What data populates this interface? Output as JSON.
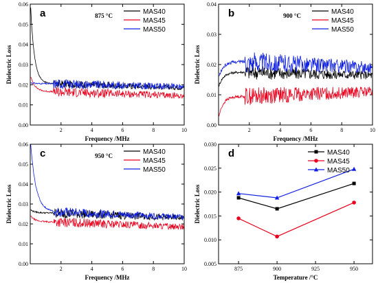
{
  "colors": {
    "MAS40": "#000000",
    "MAS45": "#e8001c",
    "MAS50": "#1020e0"
  },
  "chart_data": [
    {
      "panel": "a",
      "type": "line",
      "annotation": "875 °C",
      "xlabel": "Frequency /MHz",
      "ylabel": "Dielectric Loss",
      "xlim": [
        0,
        10
      ],
      "ylim": [
        0,
        0.06
      ],
      "xticks": [
        "2",
        "4",
        "6",
        "8",
        "10"
      ],
      "yticks": [
        "0.00",
        "0.01",
        "0.02",
        "0.03",
        "0.04",
        "0.05",
        "0.06"
      ],
      "legend": [
        "MAS40",
        "MAS45",
        "MAS50"
      ],
      "series": [
        {
          "name": "MAS40",
          "start": 0.058,
          "base": 0.0205,
          "tail": 0.0185,
          "knee": 1.5,
          "noise": 0.004,
          "decay": 0.25
        },
        {
          "name": "MAS45",
          "start": 0.024,
          "base": 0.0165,
          "tail": 0.0145,
          "knee": 1.5,
          "noise": 0.005,
          "decay": 0.3
        },
        {
          "name": "MAS50",
          "start": 0.021,
          "base": 0.0205,
          "tail": 0.019,
          "knee": 1.5,
          "noise": 0.005,
          "decay": 0.3
        }
      ]
    },
    {
      "panel": "b",
      "type": "line",
      "annotation": "900 °C",
      "xlabel": "Frequency /MHz",
      "ylabel": "Dielectric Loss",
      "xlim": [
        0,
        10
      ],
      "ylim": [
        0,
        0.04
      ],
      "xticks": [
        "2",
        "4",
        "6",
        "8",
        "10"
      ],
      "yticks": [
        "0.00",
        "0.01",
        "0.02",
        "0.03",
        "0.04"
      ],
      "legend": [
        "MAS40",
        "MAS45",
        "MAS50"
      ],
      "series": [
        {
          "name": "MAS40",
          "start": 0.013,
          "base": 0.0175,
          "tail": 0.0165,
          "knee": 1.7,
          "noise": 0.005,
          "decay": 0.3
        },
        {
          "name": "MAS45",
          "start": 0.003,
          "base": 0.0095,
          "tail": 0.011,
          "knee": 1.7,
          "noise": 0.006,
          "decay": 0.3
        },
        {
          "name": "MAS50",
          "start": 0.016,
          "base": 0.021,
          "tail": 0.019,
          "knee": 1.7,
          "noise": 0.007,
          "decay": 0.3
        }
      ]
    },
    {
      "panel": "c",
      "type": "line",
      "annotation": "950 °C",
      "xlabel": "Frequency /MHz",
      "ylabel": "Dielectric Loss",
      "xlim": [
        0,
        10
      ],
      "ylim": [
        0,
        0.06
      ],
      "xticks": [
        "2",
        "4",
        "6",
        "8",
        "10"
      ],
      "yticks": [
        "0.00",
        "0.01",
        "0.02",
        "0.03",
        "0.04",
        "0.05",
        "0.06"
      ],
      "legend": [
        "MAS40",
        "MAS45",
        "MAS50"
      ],
      "series": [
        {
          "name": "MAS40",
          "start": 0.027,
          "base": 0.0255,
          "tail": 0.023,
          "knee": 1.5,
          "noise": 0.005,
          "decay": 0.3
        },
        {
          "name": "MAS45",
          "start": 0.024,
          "base": 0.021,
          "tail": 0.0185,
          "knee": 1.5,
          "noise": 0.005,
          "decay": 0.3
        },
        {
          "name": "MAS50",
          "start": 0.06,
          "base": 0.026,
          "tail": 0.0235,
          "knee": 1.5,
          "noise": 0.005,
          "decay": 0.35
        }
      ]
    },
    {
      "panel": "d",
      "type": "line",
      "xlabel": "Temperature /°C",
      "ylabel": "Dielectric Loss",
      "x": [
        875,
        900,
        950
      ],
      "xlim": [
        862,
        962
      ],
      "ylim": [
        0.005,
        0.03
      ],
      "xticks": [
        "875",
        "900",
        "925",
        "950"
      ],
      "yticks": [
        "0.005",
        "0.010",
        "0.015",
        "0.020",
        "0.025",
        "0.030"
      ],
      "legend": [
        "MAS40",
        "MAS45",
        "MAS50"
      ],
      "series": [
        {
          "name": "MAS40",
          "marker": "square",
          "values": [
            0.0188,
            0.0165,
            0.0218
          ]
        },
        {
          "name": "MAS45",
          "marker": "circle",
          "values": [
            0.0145,
            0.0107,
            0.0178
          ]
        },
        {
          "name": "MAS50",
          "marker": "triangle",
          "values": [
            0.0197,
            0.0188,
            0.0248
          ]
        }
      ]
    }
  ]
}
